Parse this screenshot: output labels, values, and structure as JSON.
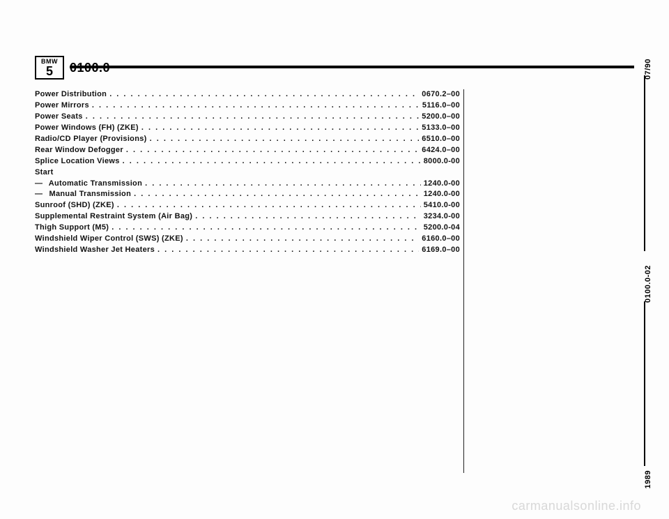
{
  "badge": {
    "top": "BMW",
    "bot": "5"
  },
  "section_number": "0100.0",
  "rail": {
    "top": "07/90",
    "mid": "0100.0-02",
    "bot": "1989"
  },
  "watermark": "carmanualsonline.info",
  "toc": {
    "items": [
      {
        "label": "Power Distribution",
        "code": "0670.2–00"
      },
      {
        "label": "Power Mirrors",
        "code": "5116.0–00"
      },
      {
        "label": "Power Seats",
        "code": "5200.0–00"
      },
      {
        "label": "Power Windows (FH) (ZKE)",
        "code": "5133.0–00"
      },
      {
        "label": "Radio/CD Player (Provisions)",
        "code": "6510.0–00"
      },
      {
        "label": "Rear Window Defogger",
        "code": "6424.0–00"
      },
      {
        "label": "Splice Location Views",
        "code": "8000.0-00"
      }
    ],
    "start_label": "Start",
    "start_items": [
      {
        "label": "Automatic Transmission",
        "code": "1240.0-00"
      },
      {
        "label": "Manual Transmission",
        "code": "1240.0-00"
      }
    ],
    "items2": [
      {
        "label": "Sunroof (SHD) (ZKE)",
        "code": "5410.0-00"
      },
      {
        "label": "Supplemental Restraint System (Air Bag)",
        "code": "3234.0-00"
      },
      {
        "label": "Thigh Support (M5)",
        "code": "5200.0-04"
      },
      {
        "label": "Windshield Wiper Control (SWS) (ZKE)",
        "code": "6160.0–00"
      },
      {
        "label": "Windshield Washer Jet Heaters",
        "code": "6169.0–00"
      }
    ]
  },
  "dots": ". . . . . . . . . . . . . . . . . . . . . . . . . . . . . . . . . . . . . . . . . . . . . . . . . . . . . . . . . . . ."
}
